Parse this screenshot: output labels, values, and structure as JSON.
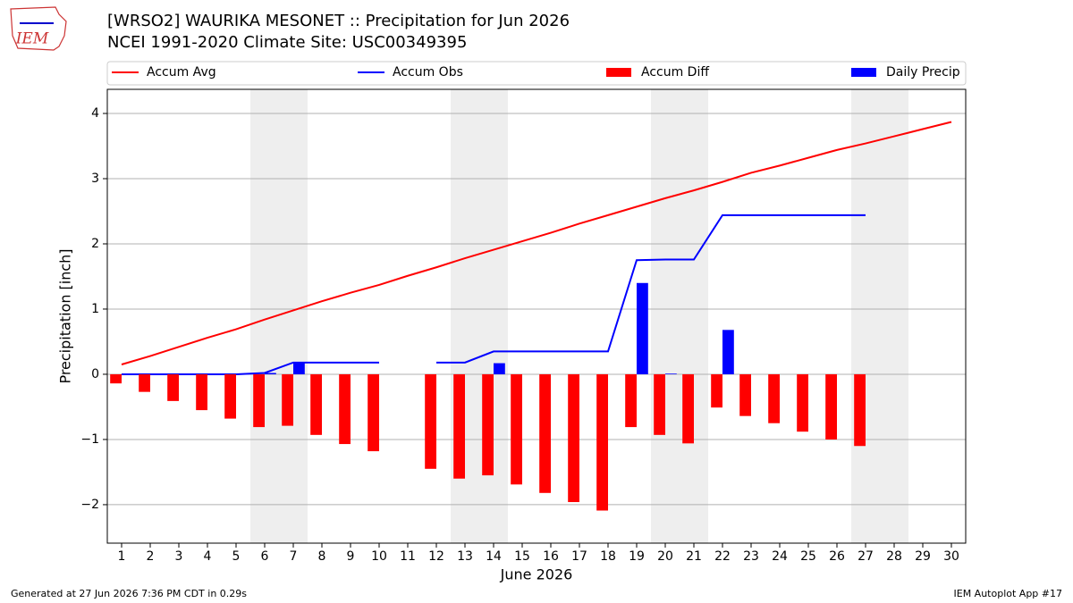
{
  "logo": "IEM",
  "footer_left": "Generated at 27 Jun 2026 7:36 PM CDT in 0.29s",
  "footer_right": "IEM Autoplot App #17",
  "chart_data": {
    "type": "combo",
    "title": "[WRSO2] WAURIKA MESONET :: Precipitation for Jun 2026",
    "subtitle": "NCEI 1991-2020 Climate Site: USC00349395",
    "x_label": "June 2026",
    "y_label": "Precipitation [inch]",
    "x": [
      1,
      2,
      3,
      4,
      5,
      6,
      7,
      8,
      9,
      10,
      11,
      12,
      13,
      14,
      15,
      16,
      17,
      18,
      19,
      20,
      21,
      22,
      23,
      24,
      25,
      26,
      27,
      28,
      29,
      30
    ],
    "xlim": [
      0.5,
      30.5
    ],
    "xticks": [
      1,
      2,
      3,
      4,
      5,
      6,
      7,
      8,
      9,
      10,
      11,
      12,
      13,
      14,
      15,
      16,
      17,
      18,
      19,
      20,
      21,
      22,
      23,
      24,
      25,
      26,
      27,
      28,
      29,
      30
    ],
    "ylim": [
      -2.59,
      4.37
    ],
    "yticks": [
      {
        "value": -2,
        "label": "−2"
      },
      {
        "value": -1,
        "label": "−1"
      },
      0,
      1,
      2,
      3,
      4
    ],
    "grid": true,
    "shaded_days": [
      6,
      7,
      13,
      14,
      20,
      21,
      27,
      28
    ],
    "series": [
      {
        "name": "Accum Avg",
        "type": "line",
        "color": "#ff0000",
        "values": [
          0.15,
          0.28,
          0.42,
          0.56,
          0.69,
          0.84,
          0.98,
          1.12,
          1.25,
          1.37,
          1.51,
          1.64,
          1.78,
          1.91,
          2.04,
          2.17,
          2.31,
          2.44,
          2.57,
          2.7,
          2.82,
          2.95,
          3.09,
          3.2,
          3.32,
          3.44,
          3.54,
          3.65,
          3.76,
          3.87
        ]
      },
      {
        "name": "Accum Obs",
        "type": "line",
        "color": "#0000ff",
        "values": [
          0,
          0,
          0,
          0,
          0,
          0.02,
          0.18,
          0.18,
          0.18,
          0.18,
          null,
          0.18,
          0.18,
          0.35,
          0.35,
          0.35,
          0.35,
          0.35,
          1.75,
          1.76,
          1.76,
          2.44,
          2.44,
          2.44,
          2.44,
          2.44,
          2.44,
          null,
          null,
          null
        ]
      },
      {
        "name": "Accum Diff",
        "type": "bar",
        "color": "#ff0000",
        "values": [
          -0.14,
          -0.27,
          -0.41,
          -0.55,
          -0.68,
          -0.81,
          -0.79,
          -0.93,
          -1.07,
          -1.18,
          null,
          -1.45,
          -1.6,
          -1.55,
          -1.69,
          -1.82,
          -1.96,
          -2.09,
          -0.81,
          -0.93,
          -1.06,
          -0.51,
          -0.64,
          -0.75,
          -0.88,
          -1.0,
          -1.1,
          null,
          null,
          null
        ]
      },
      {
        "name": "Daily Precip",
        "type": "bar",
        "color": "#0000ff",
        "values": [
          0,
          0,
          0,
          0,
          0,
          0.02,
          0.17,
          0,
          0,
          0,
          null,
          0,
          0,
          0.17,
          0,
          0,
          0,
          0,
          1.4,
          0.01,
          0,
          0.68,
          0,
          0,
          0,
          0,
          0,
          null,
          null,
          null
        ]
      }
    ]
  }
}
